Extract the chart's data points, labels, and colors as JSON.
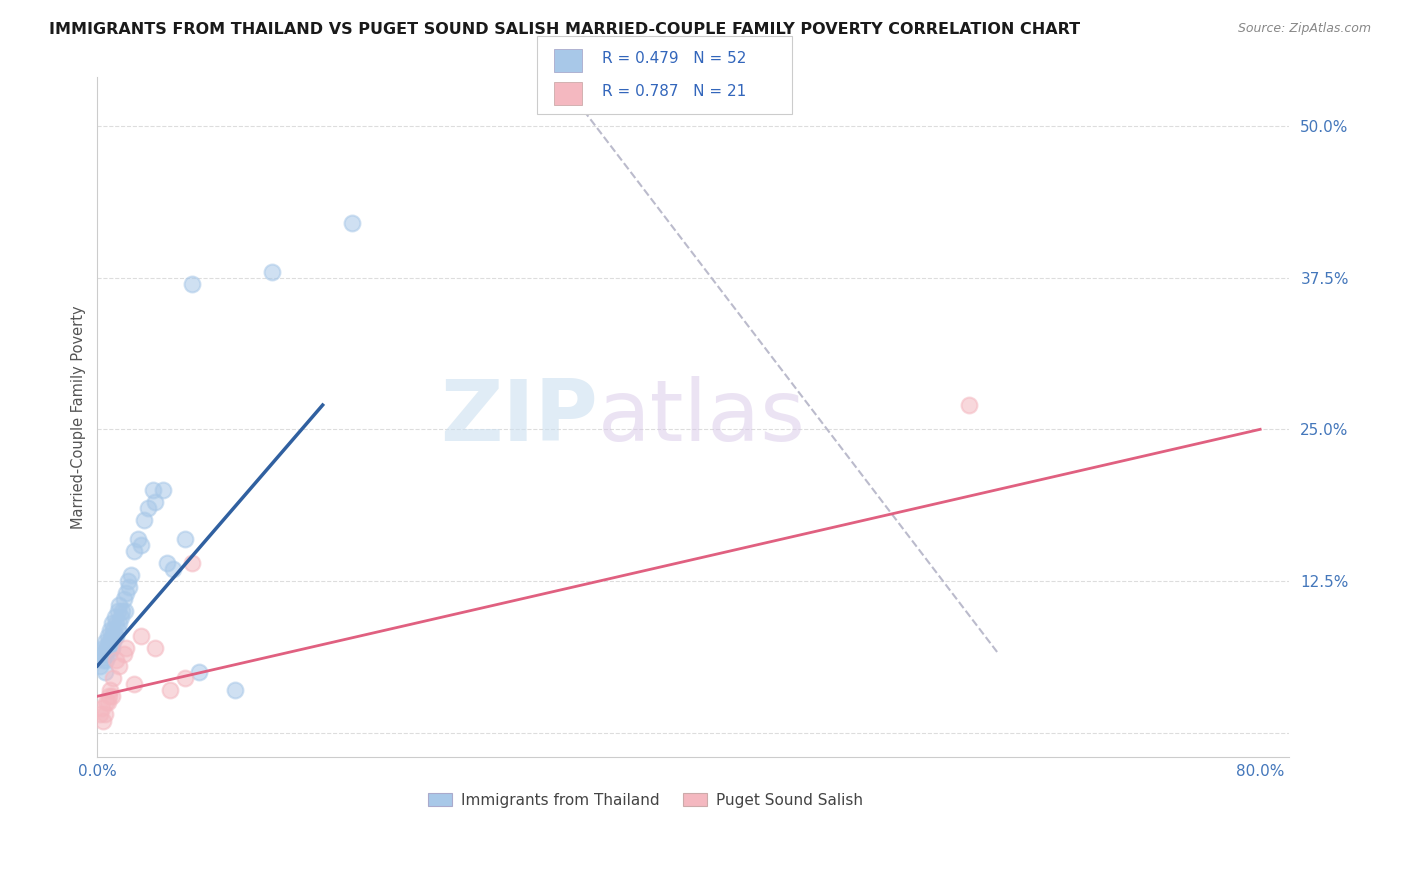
{
  "title": "IMMIGRANTS FROM THAILAND VS PUGET SOUND SALISH MARRIED-COUPLE FAMILY POVERTY CORRELATION CHART",
  "source": "Source: ZipAtlas.com",
  "ylabel": "Married-Couple Family Poverty",
  "xlim": [
    0.0,
    0.82
  ],
  "ylim": [
    -0.02,
    0.54
  ],
  "yticks": [
    0.0,
    0.125,
    0.25,
    0.375,
    0.5
  ],
  "ytick_labels": [
    "",
    "12.5%",
    "25.0%",
    "37.5%",
    "50.0%"
  ],
  "xticks": [
    0.0,
    0.2,
    0.4,
    0.6,
    0.8
  ],
  "xtick_labels": [
    "0.0%",
    "",
    "",
    "",
    "80.0%"
  ],
  "blue_color": "#a8c8e8",
  "pink_color": "#f4b8c0",
  "blue_line_color": "#3060a0",
  "pink_line_color": "#e06080",
  "dashed_line_color": "#bbbbcc",
  "watermark_zip": "ZIP",
  "watermark_atlas": "atlas",
  "blue_scatter_x": [
    0.002,
    0.003,
    0.004,
    0.004,
    0.005,
    0.005,
    0.005,
    0.006,
    0.006,
    0.007,
    0.007,
    0.008,
    0.008,
    0.009,
    0.009,
    0.01,
    0.01,
    0.01,
    0.011,
    0.011,
    0.012,
    0.012,
    0.013,
    0.013,
    0.014,
    0.014,
    0.015,
    0.015,
    0.016,
    0.017,
    0.018,
    0.019,
    0.02,
    0.021,
    0.022,
    0.023,
    0.025,
    0.028,
    0.03,
    0.032,
    0.035,
    0.038,
    0.04,
    0.045,
    0.048,
    0.052,
    0.06,
    0.065,
    0.07,
    0.095,
    0.12,
    0.175
  ],
  "blue_scatter_y": [
    0.055,
    0.065,
    0.06,
    0.07,
    0.05,
    0.065,
    0.075,
    0.06,
    0.07,
    0.07,
    0.08,
    0.065,
    0.075,
    0.075,
    0.085,
    0.07,
    0.08,
    0.09,
    0.075,
    0.085,
    0.08,
    0.095,
    0.08,
    0.09,
    0.085,
    0.1,
    0.09,
    0.105,
    0.095,
    0.1,
    0.11,
    0.1,
    0.115,
    0.125,
    0.12,
    0.13,
    0.15,
    0.16,
    0.155,
    0.175,
    0.185,
    0.2,
    0.19,
    0.2,
    0.14,
    0.135,
    0.16,
    0.37,
    0.05,
    0.035,
    0.38,
    0.42
  ],
  "pink_scatter_x": [
    0.002,
    0.003,
    0.004,
    0.005,
    0.006,
    0.007,
    0.008,
    0.009,
    0.01,
    0.011,
    0.013,
    0.015,
    0.018,
    0.02,
    0.025,
    0.03,
    0.04,
    0.05,
    0.06,
    0.065,
    0.6
  ],
  "pink_scatter_y": [
    0.015,
    0.02,
    0.01,
    0.015,
    0.025,
    0.025,
    0.03,
    0.035,
    0.03,
    0.045,
    0.06,
    0.055,
    0.065,
    0.07,
    0.04,
    0.08,
    0.07,
    0.035,
    0.045,
    0.14,
    0.27
  ],
  "blue_line_x": [
    0.0,
    0.155
  ],
  "blue_line_y": [
    0.055,
    0.27
  ],
  "pink_line_x": [
    0.0,
    0.8
  ],
  "pink_line_y": [
    0.03,
    0.25
  ],
  "dashed_line_x": [
    0.33,
    0.62
  ],
  "dashed_line_y": [
    0.52,
    0.065
  ]
}
